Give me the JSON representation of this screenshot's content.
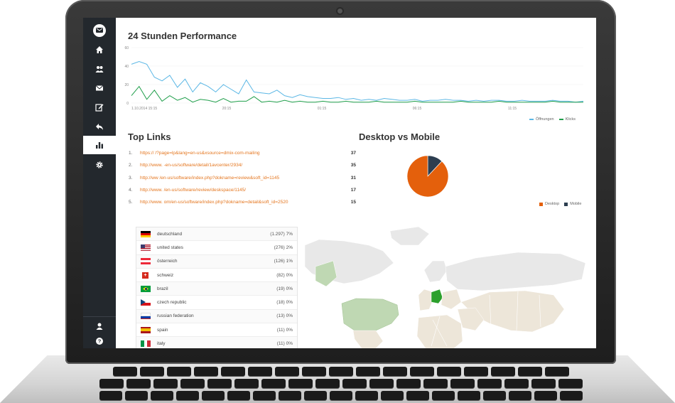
{
  "nav": {
    "icons": [
      "dashboard-icon",
      "home-icon",
      "users-icon",
      "mail-icon",
      "edit-icon",
      "reply-icon",
      "chart-icon",
      "gear-icon",
      "user-icon",
      "help-icon"
    ]
  },
  "performance": {
    "title": "24 Stunden Performance",
    "y_ticks": [
      "60",
      "40",
      "20",
      "0"
    ],
    "x_ticks": [
      "1.10.2014 15:15",
      "20:15",
      "01:15",
      "06:15",
      "11:15"
    ],
    "legend": [
      "Öffnungen",
      "Klicks"
    ],
    "colors": {
      "openings": "#5bb7e5",
      "clicks": "#1f9e4a"
    }
  },
  "chart_data": [
    {
      "type": "line",
      "title": "24 Stunden Performance",
      "ylim": [
        0,
        60
      ],
      "x_ticks": [
        "1.10.2014 15:15",
        "20:15",
        "01:15",
        "06:15",
        "11:15"
      ],
      "series": [
        {
          "name": "Öffnungen",
          "values": [
            42,
            45,
            42,
            28,
            24,
            30,
            17,
            26,
            12,
            22,
            18,
            12,
            20,
            15,
            10,
            25,
            12,
            11,
            10,
            14,
            8,
            6,
            9,
            7,
            6,
            5,
            5,
            6,
            4,
            5,
            3,
            4,
            3,
            5,
            4,
            3,
            3,
            4,
            2,
            3,
            3,
            4,
            3,
            3,
            2,
            3,
            2,
            3,
            3,
            2,
            2,
            3,
            2,
            2,
            2,
            3,
            2,
            2,
            1,
            2
          ]
        },
        {
          "name": "Klicks",
          "values": [
            8,
            18,
            4,
            14,
            2,
            8,
            3,
            6,
            1,
            4,
            3,
            1,
            5,
            1,
            2,
            2,
            7,
            1,
            2,
            1,
            3,
            1,
            2,
            1,
            1,
            2,
            1,
            1,
            2,
            1,
            1,
            1,
            2,
            1,
            1,
            1,
            1,
            2,
            1,
            1,
            1,
            1,
            1,
            2,
            1,
            1,
            1,
            1,
            2,
            1,
            1,
            1,
            1,
            1,
            1,
            2,
            1,
            1,
            1,
            1
          ]
        }
      ]
    },
    {
      "type": "pie",
      "title": "Desktop vs Mobile",
      "categories": [
        "Desktop",
        "Mobile"
      ],
      "values": [
        88,
        12
      ],
      "colors": [
        "#e4600c",
        "#2c3e50"
      ]
    }
  ],
  "top_links": {
    "title": "Top Links",
    "items": [
      {
        "num": "1.",
        "url": "https://                                      /?page=lp&lang=en-us&xsource=dmix-com-mailing",
        "count": "37"
      },
      {
        "num": "2.",
        "url": "http://www.                           -en-us/software/detail/1avcenter/2934/",
        "count": "35"
      },
      {
        "num": "3.",
        "url": "http://ww                                 /en-us/software/index.php?dokname=review&soft_id=1145",
        "count": "31"
      },
      {
        "num": "4.",
        "url": "http://www.                           /en-us/software/review/deskspace/1145/",
        "count": "17"
      },
      {
        "num": "5.",
        "url": "http://www.                      om/en-us/software/index.php?dokname=detail&soft_id=2520",
        "count": "15"
      }
    ]
  },
  "desktop_mobile": {
    "title": "Desktop vs Mobile",
    "legend": [
      "Desktop",
      "Mobile"
    ]
  },
  "countries": [
    {
      "flag": "de",
      "name": "deutschland",
      "value": "(1.297) 7%"
    },
    {
      "flag": "us",
      "name": "united states",
      "value": "(276) 2%"
    },
    {
      "flag": "at",
      "name": "österreich",
      "value": "(126) 1%"
    },
    {
      "flag": "ch",
      "name": "schweiz",
      "value": "(82) 0%"
    },
    {
      "flag": "br",
      "name": "brazil",
      "value": "(19) 0%"
    },
    {
      "flag": "cz",
      "name": "czech republic",
      "value": "(18) 0%"
    },
    {
      "flag": "ru",
      "name": "russian federation",
      "value": "(13) 0%"
    },
    {
      "flag": "es",
      "name": "spain",
      "value": "(11) 0%"
    },
    {
      "flag": "it",
      "name": "italy",
      "value": "(11) 0%"
    }
  ]
}
